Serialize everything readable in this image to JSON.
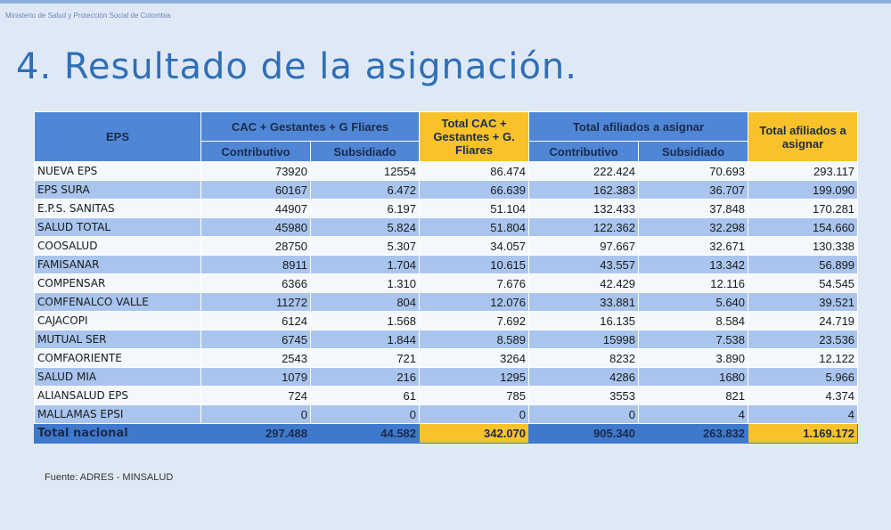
{
  "header": {
    "ministry": "Ministerio de Salud y Protección Social de Colombia"
  },
  "title": "4. Resultado de la asignación.",
  "table": {
    "col_eps": "EPS",
    "group_cac": "CAC + Gestantes + G Fliares",
    "col_contributivo": "Contributivo",
    "col_subsidiado": "Subsidiado",
    "col_total_cac": "Total CAC + Gestantes + G. Fliares",
    "group_afiliados": "Total afiliados a asignar",
    "col_total_afiliados": "Total afiliados a asignar",
    "rows": [
      [
        "NUEVA EPS",
        "73920",
        "12554",
        "86.474",
        "222.424",
        "70.693",
        "293.117"
      ],
      [
        "EPS SURA",
        "60167",
        "6.472",
        "66.639",
        "162.383",
        "36.707",
        "199.090"
      ],
      [
        "E.P.S. SANITAS",
        "44907",
        "6.197",
        "51.104",
        "132.433",
        "37.848",
        "170.281"
      ],
      [
        "SALUD TOTAL",
        "45980",
        "5.824",
        "51.804",
        "122.362",
        "32.298",
        "154.660"
      ],
      [
        "COOSALUD",
        "28750",
        "5.307",
        "34.057",
        "97.667",
        "32.671",
        "130.338"
      ],
      [
        "FAMISANAR",
        "8911",
        "1.704",
        "10.615",
        "43.557",
        "13.342",
        "56.899"
      ],
      [
        "COMPENSAR",
        "6366",
        "1.310",
        "7.676",
        "42.429",
        "12.116",
        "54.545"
      ],
      [
        "COMFENALCO VALLE",
        "11272",
        "804",
        "12.076",
        "33.881",
        "5.640",
        "39.521"
      ],
      [
        "CAJACOPI",
        "6124",
        "1.568",
        "7.692",
        "16.135",
        "8.584",
        "24.719"
      ],
      [
        "MUTUAL SER",
        "6745",
        "1.844",
        "8.589",
        "15998",
        "7.538",
        "23.536"
      ],
      [
        "COMFAORIENTE",
        "2543",
        "721",
        "3264",
        "8232",
        "3.890",
        "12.122"
      ],
      [
        "SALUD MIA",
        "1079",
        "216",
        "1295",
        "4286",
        "1680",
        "5.966"
      ],
      [
        "ALIANSALUD EPS",
        "724",
        "61",
        "785",
        "3553",
        "821",
        "4.374"
      ],
      [
        "MALLAMAS EPSI",
        "0",
        "0",
        "0",
        "0",
        "4",
        "4"
      ]
    ],
    "total": [
      "Total nacional",
      "297.488",
      "44.582",
      "342.070",
      "905.340",
      "263.832",
      "1.169.172"
    ]
  },
  "source": "Fuente: ADRES - MINSALUD"
}
